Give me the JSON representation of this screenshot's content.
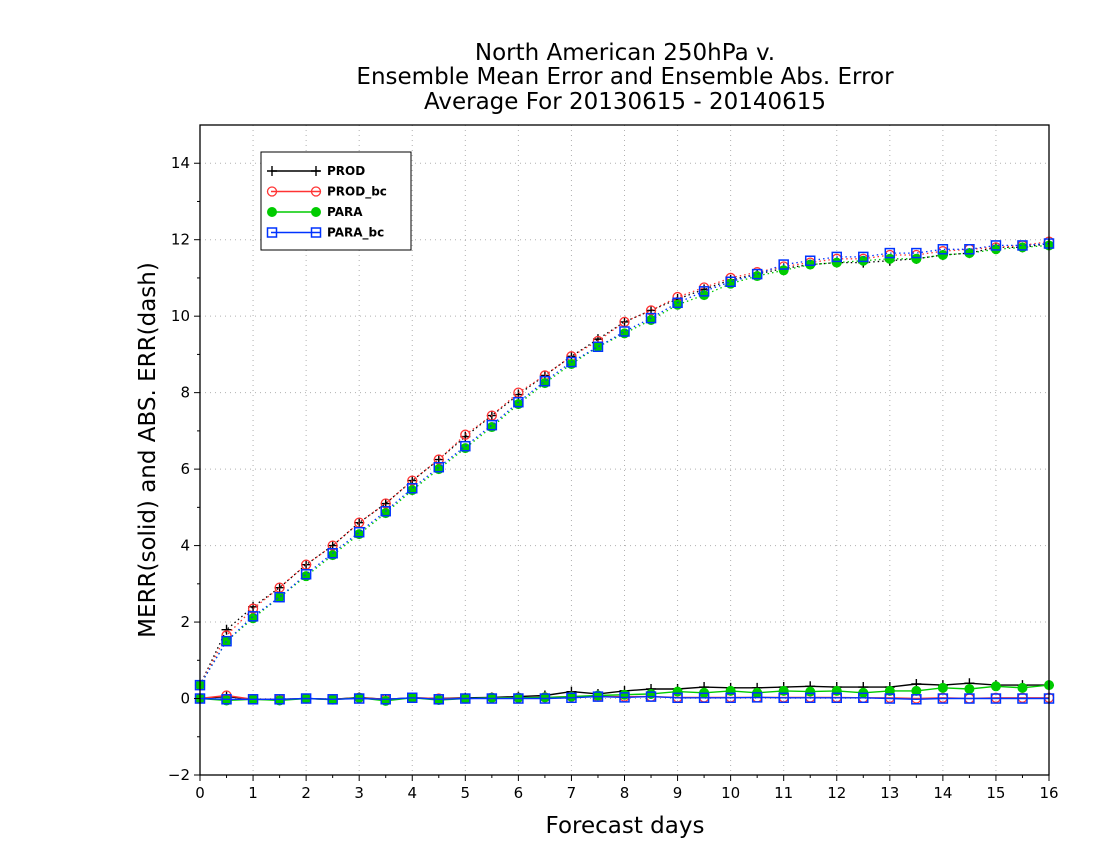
{
  "chart_data": {
    "type": "line",
    "title_lines": [
      "North American 250hPa v.",
      "Ensemble Mean Error and Ensemble Abs. Error",
      "Average For 20130615 - 20140615"
    ],
    "xlabel": "Forecast days",
    "ylabel": "MERR(solid) and ABS. ERR(dash)",
    "xlim": [
      0,
      16
    ],
    "ylim": [
      -2,
      15
    ],
    "xticks": [
      "0",
      "1",
      "2",
      "3",
      "4",
      "5",
      "6",
      "7",
      "8",
      "9",
      "10",
      "11",
      "12",
      "13",
      "14",
      "15",
      "16"
    ],
    "yticks": [
      "−2",
      "0",
      "2",
      "4",
      "6",
      "8",
      "10",
      "12",
      "14"
    ],
    "grid": true,
    "legend_position": "top-left",
    "x": [
      0,
      0.5,
      1,
      1.5,
      2,
      2.5,
      3,
      3.5,
      4,
      4.5,
      5,
      5.5,
      6,
      6.5,
      7,
      7.5,
      8,
      8.5,
      9,
      9.5,
      10,
      10.5,
      11,
      11.5,
      12,
      12.5,
      13,
      13.5,
      14,
      14.5,
      15,
      15.5,
      16
    ],
    "series": [
      {
        "name": "PROD",
        "color": "#000000",
        "marker": "plus",
        "merr": [
          0.0,
          0.05,
          -0.02,
          -0.03,
          0.0,
          -0.02,
          0.03,
          -0.02,
          0.02,
          0.0,
          0.02,
          0.03,
          0.05,
          0.08,
          0.18,
          0.12,
          0.2,
          0.25,
          0.25,
          0.3,
          0.28,
          0.28,
          0.3,
          0.32,
          0.3,
          0.3,
          0.3,
          0.38,
          0.35,
          0.4,
          0.35,
          0.35,
          0.35
        ],
        "abserr": [
          0.35,
          1.8,
          2.4,
          2.9,
          3.5,
          4.0,
          4.6,
          5.1,
          5.7,
          6.25,
          6.85,
          7.4,
          7.95,
          8.45,
          8.95,
          9.4,
          9.85,
          10.15,
          10.45,
          10.7,
          10.95,
          11.1,
          11.25,
          11.35,
          11.4,
          11.4,
          11.45,
          11.5,
          11.6,
          11.65,
          11.8,
          11.8,
          11.9
        ]
      },
      {
        "name": "PROD_bc",
        "color": "#ff3333",
        "marker": "circle",
        "merr": [
          0.0,
          0.08,
          -0.02,
          -0.02,
          0.0,
          -0.02,
          0.02,
          -0.02,
          0.02,
          0.0,
          0.0,
          0.02,
          0.02,
          0.03,
          0.05,
          0.05,
          0.05,
          0.05,
          0.03,
          0.03,
          0.03,
          0.03,
          0.03,
          0.03,
          0.03,
          0.02,
          0.02,
          0.0,
          0.02,
          0.0,
          0.02,
          0.02,
          0.02
        ],
        "abserr": [
          0.35,
          1.65,
          2.35,
          2.9,
          3.5,
          4.0,
          4.6,
          5.1,
          5.7,
          6.25,
          6.9,
          7.4,
          8.0,
          8.45,
          8.95,
          9.35,
          9.85,
          10.15,
          10.5,
          10.75,
          11.0,
          11.15,
          11.3,
          11.4,
          11.5,
          11.5,
          11.6,
          11.6,
          11.7,
          11.75,
          11.8,
          11.85,
          11.95
        ]
      },
      {
        "name": "PARA",
        "color": "#00cc00",
        "marker": "filled-circle",
        "merr": [
          0.0,
          -0.05,
          -0.02,
          -0.05,
          0.0,
          -0.03,
          0.02,
          -0.06,
          0.02,
          -0.04,
          0.0,
          0.02,
          0.02,
          0.03,
          0.05,
          0.08,
          0.1,
          0.12,
          0.18,
          0.15,
          0.2,
          0.15,
          0.2,
          0.18,
          0.2,
          0.15,
          0.2,
          0.2,
          0.28,
          0.25,
          0.32,
          0.28,
          0.35
        ],
        "abserr": [
          0.35,
          1.5,
          2.1,
          2.65,
          3.2,
          3.75,
          4.3,
          4.85,
          5.45,
          6.0,
          6.55,
          7.1,
          7.7,
          8.25,
          8.75,
          9.2,
          9.55,
          9.9,
          10.3,
          10.55,
          10.85,
          11.05,
          11.2,
          11.35,
          11.4,
          11.45,
          11.5,
          11.5,
          11.6,
          11.65,
          11.75,
          11.8,
          11.85
        ]
      },
      {
        "name": "PARA_bc",
        "color": "#0033ff",
        "marker": "square",
        "merr": [
          0.0,
          -0.02,
          -0.02,
          -0.02,
          0.0,
          -0.02,
          0.0,
          -0.02,
          0.02,
          -0.02,
          0.0,
          0.0,
          0.0,
          0.0,
          0.02,
          0.05,
          0.03,
          0.05,
          0.02,
          0.02,
          0.02,
          0.03,
          0.02,
          0.02,
          0.02,
          0.02,
          0.0,
          -0.02,
          0.0,
          0.0,
          0.0,
          0.0,
          0.0
        ],
        "abserr": [
          0.35,
          1.5,
          2.15,
          2.65,
          3.25,
          3.8,
          4.35,
          4.9,
          5.5,
          6.05,
          6.6,
          7.15,
          7.75,
          8.3,
          8.8,
          9.2,
          9.6,
          9.95,
          10.35,
          10.65,
          10.9,
          11.1,
          11.35,
          11.45,
          11.55,
          11.55,
          11.65,
          11.65,
          11.75,
          11.75,
          11.85,
          11.85,
          11.9
        ]
      }
    ]
  }
}
